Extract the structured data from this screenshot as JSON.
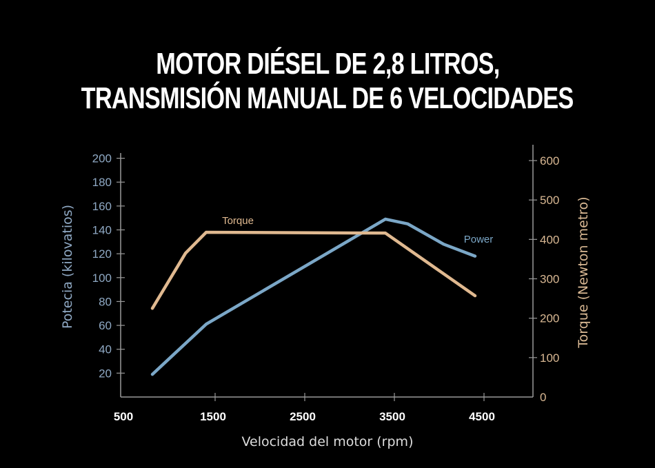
{
  "title_lines": [
    "MOTOR DIÉSEL DE 2,8 LITROS,",
    "TRANSMISIÓN MANUAL DE 6 VELOCIDADES"
  ],
  "chart_data": {
    "type": "line",
    "title": "MOTOR DIÉSEL DE 2,8 LITROS, TRANSMISIÓN MANUAL DE 6 VELOCIDADES",
    "xlabel": "Velocidad del motor (rpm)",
    "ylabel_left": "Potecia (kilovatios)",
    "ylabel_right": "Torque (Newton metro)",
    "xlim": [
      500,
      5000
    ],
    "ylim_left": [
      0,
      200
    ],
    "ylim_right": [
      0,
      600
    ],
    "x_ticks": [
      "500",
      "1500",
      "2500",
      "3500",
      "4500"
    ],
    "y_ticks_left": [
      "20",
      "40",
      "60",
      "80",
      "100",
      "120",
      "140",
      "160",
      "180",
      "200"
    ],
    "y_ticks_right": [
      "0",
      "100",
      "200",
      "300",
      "400",
      "500",
      "600"
    ],
    "grid": false,
    "series": [
      {
        "name": "Power",
        "axis": "left",
        "color": "#7ba7c7",
        "x": [
          800,
          1400,
          3400,
          3650,
          4050,
          4400
        ],
        "y": [
          19,
          61,
          149,
          145,
          128,
          118
        ]
      },
      {
        "name": "Torque",
        "axis": "right",
        "color": "#e0b990",
        "x": [
          800,
          1170,
          1400,
          3400,
          4400
        ],
        "y": [
          225,
          365,
          418,
          416,
          257
        ]
      }
    ],
    "colors": {
      "left_axis_text": "#8fa9c4",
      "right_axis_text": "#d9b893",
      "axis_line": "#9a9a9a",
      "background": "#000000"
    }
  }
}
